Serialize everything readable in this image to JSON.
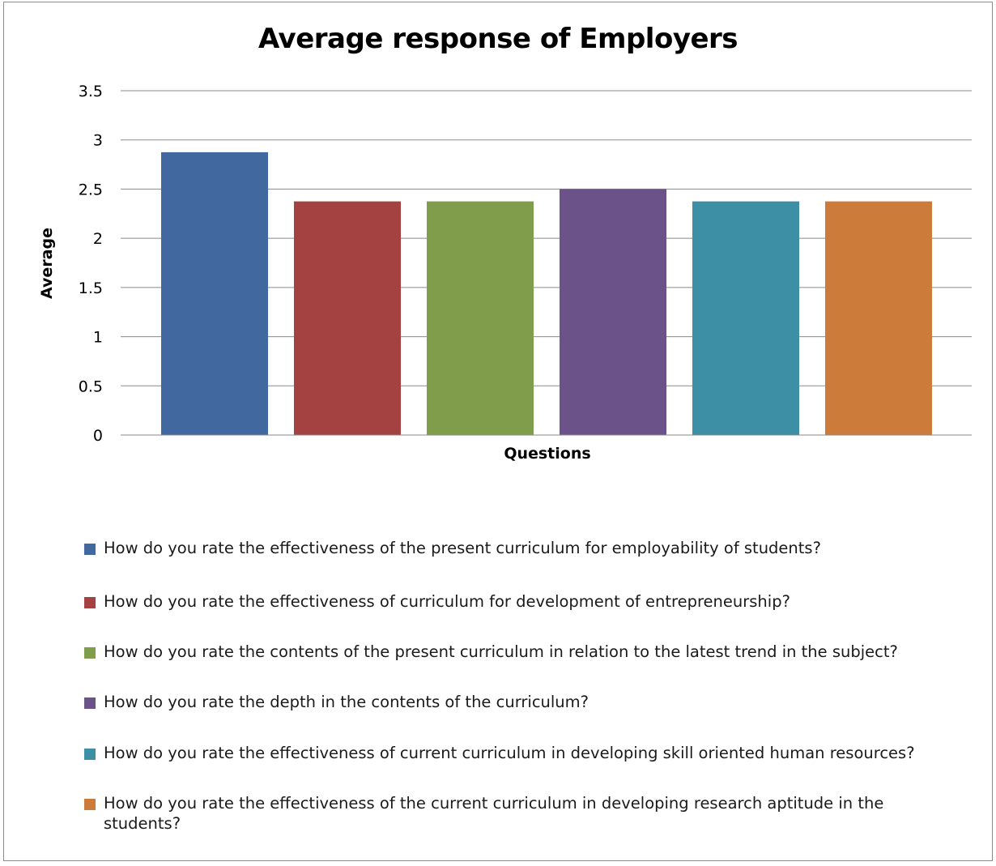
{
  "chart_data": {
    "type": "bar",
    "title": "Average response of Employers",
    "xlabel": "Questions",
    "ylabel": "Average",
    "ylim": [
      0,
      3.5
    ],
    "yticks": [
      "0",
      "0.5",
      "1",
      "1.5",
      "2",
      "2.5",
      "3",
      "3.5"
    ],
    "grid": true,
    "legend_position": "bottom",
    "series": [
      {
        "name": "How do you rate the effectiveness of the present curriculum for employability of students?",
        "value": 2.875,
        "color": "#4169a0"
      },
      {
        "name": "How do you rate the effectiveness of curriculum for development of entrepreneurship?",
        "value": 2.375,
        "color": "#a34240"
      },
      {
        "name": "How do you rate the contents of the present curriculum in relation to the latest trend in the subject?",
        "value": 2.375,
        "color": "#809d4b"
      },
      {
        "name": "How do you rate the depth in the contents of the curriculum?",
        "value": 2.5,
        "color": "#6b5288"
      },
      {
        "name": "How do you rate the effectiveness of current curriculum in developing skill oriented human resources?",
        "value": 2.375,
        "color": "#3d8fa6"
      },
      {
        "name": "How do you rate the effectiveness of the current curriculum in developing research aptitude in the students?",
        "value": 2.375,
        "color": "#cc7b3a"
      }
    ]
  }
}
